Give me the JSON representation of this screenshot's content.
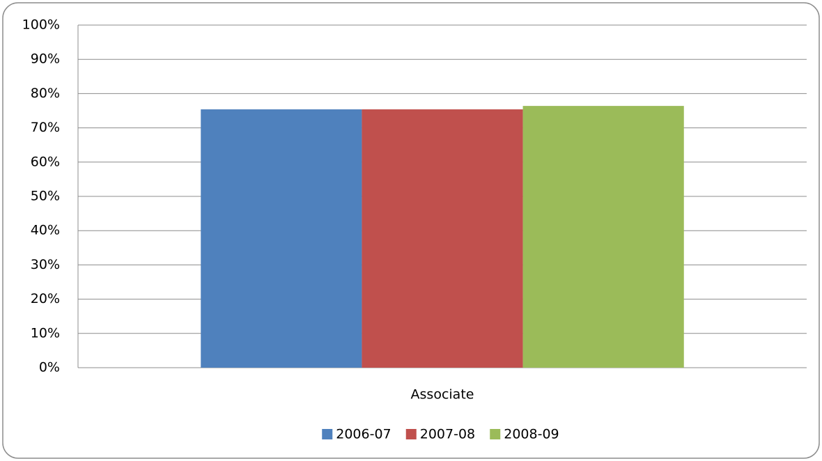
{
  "chart_data": {
    "type": "bar",
    "categories": [
      "Associate"
    ],
    "series": [
      {
        "name": "2006-07",
        "color": "#4f81bd",
        "values": [
          75.4
        ]
      },
      {
        "name": "2007-08",
        "color": "#c0504d",
        "values": [
          75.4
        ]
      },
      {
        "name": "2008-09",
        "color": "#9bbb59",
        "values": [
          76.4
        ]
      }
    ],
    "ylim": [
      0,
      100
    ],
    "yticks": [
      {
        "value": 0,
        "label": "0%"
      },
      {
        "value": 10,
        "label": "10%"
      },
      {
        "value": 20,
        "label": "20%"
      },
      {
        "value": 30,
        "label": "30%"
      },
      {
        "value": 40,
        "label": "40%"
      },
      {
        "value": 50,
        "label": "50%"
      },
      {
        "value": 60,
        "label": "60%"
      },
      {
        "value": 70,
        "label": "70%"
      },
      {
        "value": 80,
        "label": "80%"
      },
      {
        "value": 90,
        "label": "90%"
      },
      {
        "value": 100,
        "label": "100%"
      }
    ],
    "grid": true,
    "legend": "bottom"
  }
}
